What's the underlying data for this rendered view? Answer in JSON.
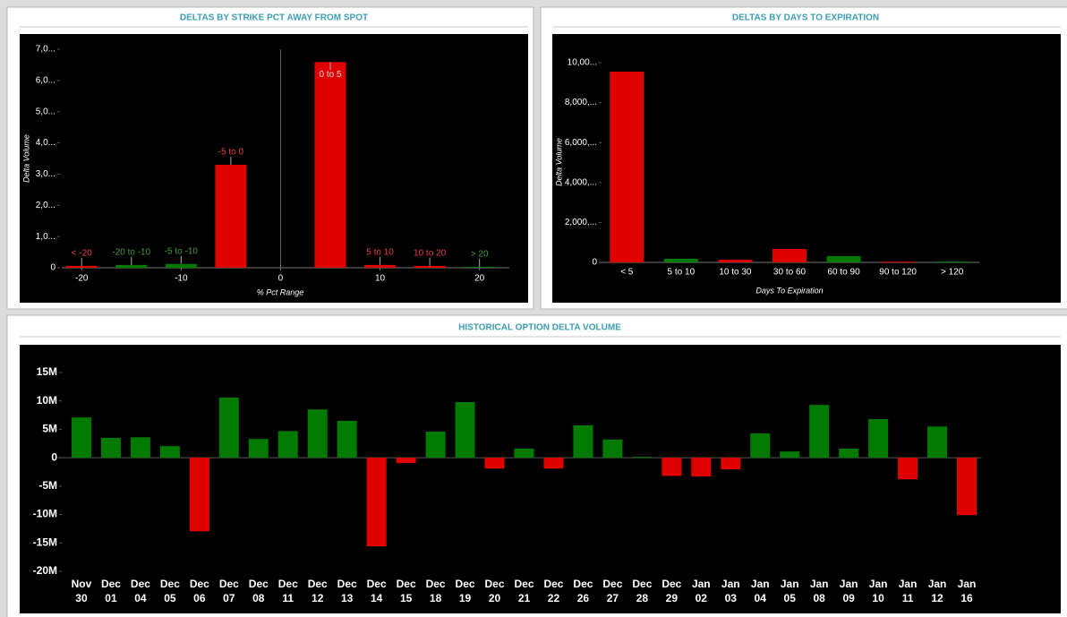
{
  "chart_data": [
    {
      "type": "bar",
      "title": "DELTAS BY STRIKE PCT AWAY FROM SPOT",
      "y_label": "Delta Volume",
      "x_label": "% Pct Range",
      "x": [
        -20,
        -15,
        -10,
        -5,
        5,
        10,
        15,
        20
      ],
      "labels": [
        "< -20",
        "-20 to -10",
        "-5 to -10",
        "-5 to 0",
        "0 to 5",
        "5 to 10",
        "10 to 20",
        "> 20"
      ],
      "values": [
        60000,
        90000,
        120000,
        3300000,
        6590000,
        90000,
        60000,
        30000
      ],
      "colors": [
        "#e00000",
        "#007a00",
        "#007a00",
        "#e00000",
        "#e00000",
        "#e00000",
        "#e00000",
        "#007a00"
      ],
      "xlim": [
        -22,
        23
      ],
      "xticks": [
        -20,
        -10,
        0,
        10,
        20
      ],
      "ylim": [
        0,
        7000000
      ],
      "yticks": [
        0,
        {
          "value": 1000000,
          "label": "1,0..."
        },
        {
          "value": 2000000,
          "label": "2,0..."
        },
        {
          "value": 3000000,
          "label": "3,0..."
        },
        {
          "value": 4000000,
          "label": "4,0..."
        },
        {
          "value": 5000000,
          "label": "5,0..."
        },
        {
          "value": 6000000,
          "label": "6,0..."
        },
        {
          "value": 7000000,
          "label": "7,0..."
        }
      ]
    },
    {
      "type": "bar",
      "title": "DELTAS BY DAYS TO EXPIRATION",
      "y_label": "Delta Volume",
      "x_label": "Days To Expiration",
      "categories": [
        "< 5",
        "5 to 10",
        "10 to 30",
        "30 to 60",
        "60 to 90",
        "90 to 120",
        "> 120"
      ],
      "values": [
        9550000,
        180000,
        130000,
        670000,
        310000,
        40000,
        40000
      ],
      "colors": [
        "#e00000",
        "#007a00",
        "#e00000",
        "#e00000",
        "#007a00",
        "#e00000",
        "#007a00"
      ],
      "ylim": [
        0,
        10000000
      ],
      "yticks": [
        0,
        {
          "value": 2000000,
          "label": "2,000,..."
        },
        {
          "value": 4000000,
          "label": "4,000,..."
        },
        {
          "value": 6000000,
          "label": "6,000,..."
        },
        {
          "value": 8000000,
          "label": "8,000,..."
        },
        {
          "value": 10000000,
          "label": "10,00..."
        }
      ]
    },
    {
      "type": "bar",
      "title": "HISTORICAL OPTION DELTA VOLUME",
      "categories": [
        [
          "Nov",
          "30"
        ],
        [
          "Dec",
          "01"
        ],
        [
          "Dec",
          "04"
        ],
        [
          "Dec",
          "05"
        ],
        [
          "Dec",
          "06"
        ],
        [
          "Dec",
          "07"
        ],
        [
          "Dec",
          "08"
        ],
        [
          "Dec",
          "11"
        ],
        [
          "Dec",
          "12"
        ],
        [
          "Dec",
          "13"
        ],
        [
          "Dec",
          "14"
        ],
        [
          "Dec",
          "15"
        ],
        [
          "Dec",
          "18"
        ],
        [
          "Dec",
          "19"
        ],
        [
          "Dec",
          "20"
        ],
        [
          "Dec",
          "21"
        ],
        [
          "Dec",
          "22"
        ],
        [
          "Dec",
          "26"
        ],
        [
          "Dec",
          "27"
        ],
        [
          "Dec",
          "28"
        ],
        [
          "Dec",
          "29"
        ],
        [
          "Jan",
          "02"
        ],
        [
          "Jan",
          "03"
        ],
        [
          "Jan",
          "04"
        ],
        [
          "Jan",
          "05"
        ],
        [
          "Jan",
          "08"
        ],
        [
          "Jan",
          "09"
        ],
        [
          "Jan",
          "10"
        ],
        [
          "Jan",
          "11"
        ],
        [
          "Jan",
          "12"
        ],
        [
          "Jan",
          "16"
        ]
      ],
      "values": [
        7100000,
        3500000,
        3600000,
        2050000,
        -12950000,
        10600000,
        3300000,
        4700000,
        8500000,
        6500000,
        -15600000,
        -950000,
        4600000,
        9800000,
        -1900000,
        1600000,
        -1900000,
        5700000,
        3200000,
        160000,
        -3200000,
        -3300000,
        -2050000,
        4300000,
        1100000,
        9300000,
        1600000,
        6800000,
        -3800000,
        5500000,
        -10100000
      ],
      "positive_color": "#007a00",
      "negative_color": "#e00000",
      "ylim": [
        -20000000,
        15000000
      ],
      "yticks": [
        {
          "value": -20000000,
          "label": "-20M"
        },
        {
          "value": -15000000,
          "label": "-15M"
        },
        {
          "value": -10000000,
          "label": "-10M"
        },
        {
          "value": -5000000,
          "label": "-5M"
        },
        0,
        {
          "value": 5000000,
          "label": "5M"
        },
        {
          "value": 10000000,
          "label": "10M"
        },
        {
          "value": 15000000,
          "label": "15M"
        }
      ]
    }
  ]
}
